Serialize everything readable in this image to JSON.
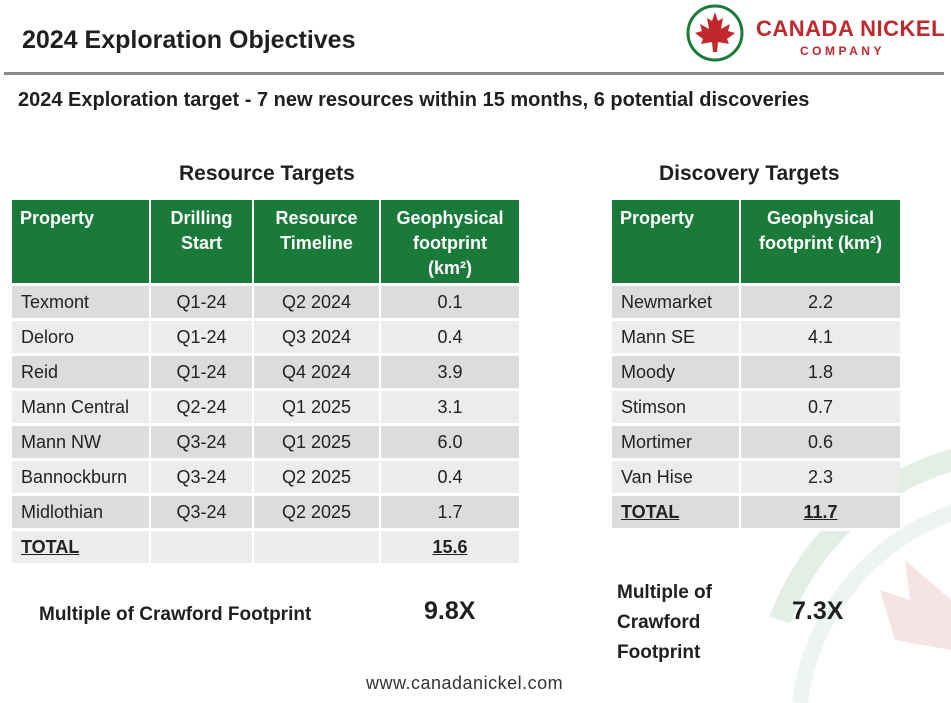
{
  "header": {
    "title": "2024 Exploration Objectives",
    "logo_name": "CANADA NICKEL",
    "logo_sub": "COMPANY"
  },
  "subtitle": "2024 Exploration target - 7 new resources within 15 months,  6 potential discoveries",
  "resource": {
    "heading": "Resource Targets",
    "columns": [
      "Property",
      "Drilling Start",
      "Resource Timeline",
      "Geophysical footprint (km²)"
    ],
    "rows": [
      {
        "property": "Texmont",
        "start": "Q1-24",
        "timeline": "Q2 2024",
        "footprint": "0.1"
      },
      {
        "property": "Deloro",
        "start": "Q1-24",
        "timeline": "Q3 2024",
        "footprint": "0.4"
      },
      {
        "property": "Reid",
        "start": "Q1-24",
        "timeline": "Q4 2024",
        "footprint": "3.9"
      },
      {
        "property": "Mann Central",
        "start": "Q2-24",
        "timeline": "Q1 2025",
        "footprint": "3.1"
      },
      {
        "property": "Mann NW",
        "start": "Q3-24",
        "timeline": "Q1 2025",
        "footprint": "6.0"
      },
      {
        "property": "Bannockburn",
        "start": "Q3-24",
        "timeline": "Q2 2025",
        "footprint": "0.4"
      },
      {
        "property": "Midlothian",
        "start": "Q3-24",
        "timeline": "Q2 2025",
        "footprint": "1.7"
      }
    ],
    "total_label": "TOTAL",
    "total_value": "15.6",
    "multiple_label": "Multiple of Crawford Footprint",
    "multiple_value": "9.8X"
  },
  "discovery": {
    "heading": "Discovery Targets",
    "columns": [
      "Property",
      "Geophysical footprint (km²)"
    ],
    "rows": [
      {
        "property": "Newmarket",
        "footprint": "2.2"
      },
      {
        "property": "Mann SE",
        "footprint": "4.1"
      },
      {
        "property": "Moody",
        "footprint": "1.8"
      },
      {
        "property": "Stimson",
        "footprint": "0.7"
      },
      {
        "property": "Mortimer",
        "footprint": "0.6"
      },
      {
        "property": "Van Hise",
        "footprint": "2.3"
      }
    ],
    "total_label": "TOTAL",
    "total_value": "11.7",
    "multiple_label": "Multiple of Crawford Footprint",
    "multiple_value": "7.3X"
  },
  "footer": "www.canadanickel.com",
  "colors": {
    "header_green": "#1a7a3a",
    "row_gray": "#dadddb",
    "brand_red": "#c1272d"
  }
}
